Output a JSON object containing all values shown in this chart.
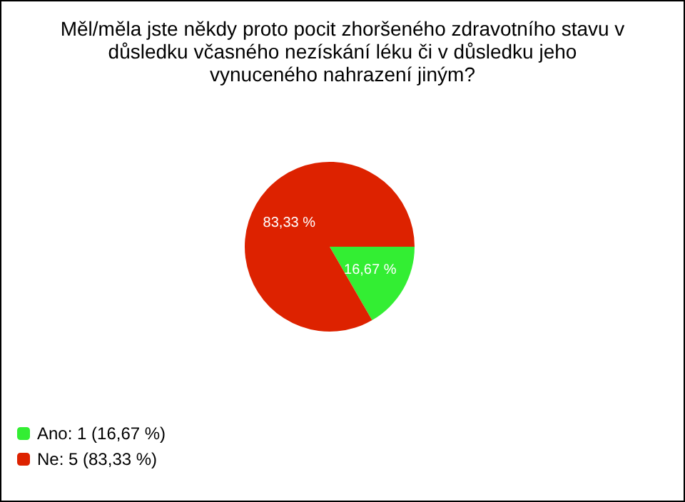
{
  "chart_data": {
    "type": "pie",
    "title": "Měl/měla jste někdy proto pocit zhoršeného zdravotního stavu v důsledku včasného nezískání léku či v důsledku jeho vynuceného nahrazení jiným?",
    "categories": [
      "Ano: 1 (16,67 %)",
      "Ne: 5 (83,33 %)"
    ],
    "values": [
      16.67,
      83.33
    ],
    "value_labels": [
      "16,67 %",
      "83,33 %"
    ],
    "colors": [
      "#33ee33",
      "#dd2200"
    ],
    "legend": "bottom left"
  }
}
